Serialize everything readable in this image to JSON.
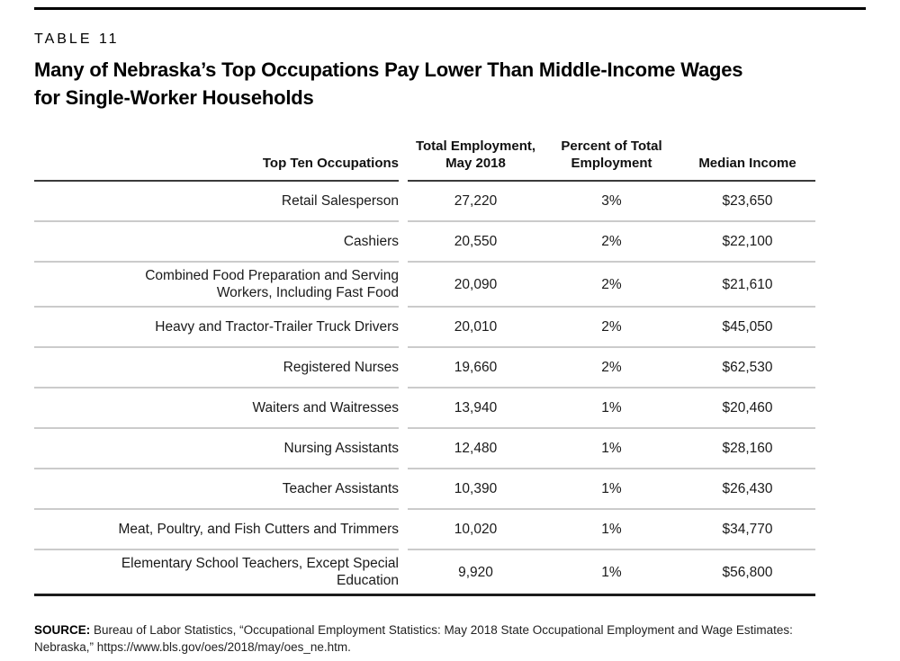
{
  "page": {
    "table_label": "TABLE 11",
    "title_line1": "Many of Nebraska’s Top Occupations Pay Lower Than Middle-Income Wages",
    "title_line2": "for Single-Worker Households"
  },
  "table": {
    "columns": [
      "Top Ten Occupations",
      "Total Employment, May 2018",
      "Percent of Total Employment",
      "Median Income"
    ],
    "rows": [
      {
        "occupation": "Retail Salesperson",
        "total_employment": "27,220",
        "percent_of_total": "3%",
        "median_income": "$23,650"
      },
      {
        "occupation": "Cashiers",
        "total_employment": "20,550",
        "percent_of_total": "2%",
        "median_income": "$22,100"
      },
      {
        "occupation": "Combined Food Preparation and Serving Workers, Including Fast Food",
        "total_employment": "20,090",
        "percent_of_total": "2%",
        "median_income": "$21,610"
      },
      {
        "occupation": "Heavy and Tractor-Trailer Truck Drivers",
        "total_employment": "20,010",
        "percent_of_total": "2%",
        "median_income": "$45,050"
      },
      {
        "occupation": "Registered Nurses",
        "total_employment": "19,660",
        "percent_of_total": "2%",
        "median_income": "$62,530"
      },
      {
        "occupation": "Waiters and Waitresses",
        "total_employment": "13,940",
        "percent_of_total": "1%",
        "median_income": "$20,460"
      },
      {
        "occupation": "Nursing Assistants",
        "total_employment": "12,480",
        "percent_of_total": "1%",
        "median_income": "$28,160"
      },
      {
        "occupation": "Teacher Assistants",
        "total_employment": "10,390",
        "percent_of_total": "1%",
        "median_income": "$26,430"
      },
      {
        "occupation": "Meat, Poultry, and Fish Cutters and Trimmers",
        "total_employment": "10,020",
        "percent_of_total": "1%",
        "median_income": "$34,770"
      },
      {
        "occupation": "Elementary School Teachers, Except Special Education",
        "total_employment": "9,920",
        "percent_of_total": "1%",
        "median_income": "$56,800"
      }
    ]
  },
  "source": {
    "label": "SOURCE:",
    "text": " Bureau of Labor Statistics, “Occupational Employment Statistics: May 2018 State Occupational Employment and Wage Estimates: Nebraska,” https://www.bls.gov/oes/2018/may/oes_ne.htm."
  },
  "colors": {
    "rule_top": "#000000",
    "rule_header": "#3a3a3a",
    "rule_row": "#cbcbcb",
    "rule_bottom": "#1c1c1c",
    "text": "#1a1a1a"
  }
}
